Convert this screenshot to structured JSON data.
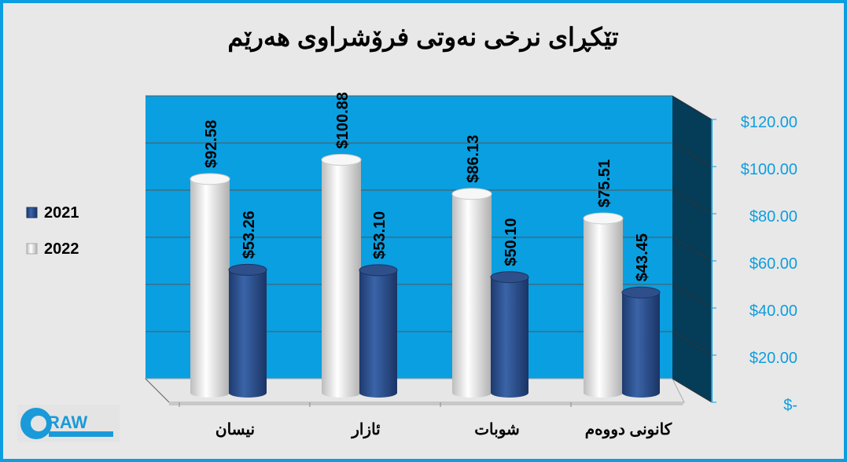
{
  "chart_data": {
    "type": "bar",
    "title": "تێکڕای نرخی نەوتی فرۆشراوی هەرێم",
    "categories": [
      "نیسان",
      "ئازار",
      "شوبات",
      "کانونی دووەم"
    ],
    "series": [
      {
        "name": "2021",
        "values": [
          53.26,
          53.1,
          50.1,
          43.45
        ],
        "labels": [
          "$53.26",
          "$53.10",
          "$50.10",
          "$43.45"
        ],
        "color": "#2f5597"
      },
      {
        "name": "2022",
        "values": [
          92.58,
          100.88,
          86.13,
          75.51
        ],
        "labels": [
          "$92.58",
          "$100.88",
          "$86.13",
          "$75.51"
        ],
        "color": "#f2f2f2"
      }
    ],
    "yticks": [
      "$-",
      "$20.00",
      "$40.00",
      "$60.00",
      "$80.00",
      "$100.00",
      "$120.00"
    ],
    "ylim": [
      0,
      120
    ],
    "yaxis_position": "right",
    "grid": true,
    "legend": "left",
    "colors": {
      "wall": "#0a9fe0",
      "side": "#053c58",
      "frame": "#0c9ee0",
      "tick_text": "#0c9ee0"
    }
  },
  "logo": {
    "text": "DRAW"
  }
}
